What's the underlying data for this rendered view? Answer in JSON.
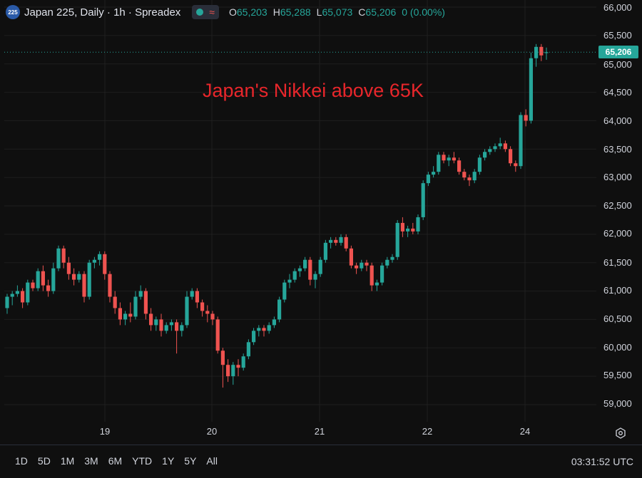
{
  "header": {
    "badge": "225",
    "title": "Japan 225, Daily · 1h · Spreadex",
    "ohlc": [
      {
        "key": "O",
        "value": "65,203"
      },
      {
        "key": "H",
        "value": "65,288"
      },
      {
        "key": "L",
        "value": "65,073"
      },
      {
        "key": "C",
        "value": "65,206"
      },
      {
        "key": "",
        "value": "0 (0.00%)"
      }
    ]
  },
  "annotation": "Japan's Nikkei above 65K",
  "price_tag": "65,206",
  "colors": {
    "up": "#26a69a",
    "down": "#ef5350",
    "annotation": "#e8262b",
    "background": "#0f0f0f"
  },
  "ranges": [
    "1D",
    "5D",
    "1M",
    "3M",
    "6M",
    "YTD",
    "1Y",
    "5Y",
    "All"
  ],
  "clock": "03:31:52 UTC",
  "icons": {
    "settings": "gear-icon",
    "status": "status-dot-icon",
    "indicator": "wave-icon"
  },
  "chart_data": {
    "type": "candlestick",
    "grid": true,
    "ylim": [
      58750,
      66000
    ],
    "yticks": [
      "66,000",
      "65,500",
      "65,000",
      "64,500",
      "64,000",
      "63,500",
      "63,000",
      "62,500",
      "62,000",
      "61,500",
      "61,000",
      "60,500",
      "60,000",
      "59,500",
      "59,000"
    ],
    "ytick_values": [
      66000,
      65500,
      65000,
      64500,
      64000,
      63500,
      63000,
      62500,
      62000,
      61500,
      61000,
      60500,
      60000,
      59500,
      59000
    ],
    "xticks": [
      "19",
      "20",
      "21",
      "22",
      "24"
    ],
    "last_price": 65206,
    "candles": [
      [
        60700,
        60950,
        60600,
        60900
      ],
      [
        60900,
        61000,
        60750,
        60950
      ],
      [
        60950,
        61100,
        60900,
        61000
      ],
      [
        61000,
        61050,
        60700,
        60800
      ],
      [
        60800,
        61200,
        60750,
        61150
      ],
      [
        61150,
        61200,
        61000,
        61050
      ],
      [
        61050,
        61400,
        61000,
        61350
      ],
      [
        61350,
        61450,
        61000,
        61100
      ],
      [
        61100,
        61200,
        60900,
        61000
      ],
      [
        61000,
        61500,
        60950,
        61400
      ],
      [
        61400,
        61800,
        61350,
        61750
      ],
      [
        61750,
        61800,
        61400,
        61500
      ],
      [
        61500,
        61600,
        61200,
        61300
      ],
      [
        61300,
        61400,
        61100,
        61200
      ],
      [
        61200,
        61350,
        61150,
        61300
      ],
      [
        61300,
        61350,
        60800,
        60900
      ],
      [
        60900,
        61550,
        60850,
        61500
      ],
      [
        61500,
        61600,
        61400,
        61550
      ],
      [
        61550,
        61700,
        61450,
        61650
      ],
      [
        61650,
        61700,
        61200,
        61300
      ],
      [
        61300,
        61350,
        60800,
        60900
      ],
      [
        60900,
        61000,
        60600,
        60700
      ],
      [
        60700,
        60800,
        60400,
        60500
      ],
      [
        60500,
        60650,
        60400,
        60600
      ],
      [
        60600,
        60800,
        60450,
        60550
      ],
      [
        60550,
        61000,
        60500,
        60900
      ],
      [
        60900,
        61100,
        60850,
        61000
      ],
      [
        61000,
        61050,
        60500,
        60600
      ],
      [
        60600,
        60700,
        60300,
        60400
      ],
      [
        60400,
        60550,
        60300,
        60500
      ],
      [
        60500,
        60600,
        60200,
        60300
      ],
      [
        60300,
        60450,
        60250,
        60400
      ],
      [
        60400,
        60500,
        60300,
        60450
      ],
      [
        60450,
        60500,
        59900,
        60300
      ],
      [
        60300,
        60450,
        60200,
        60400
      ],
      [
        60400,
        61000,
        60350,
        60900
      ],
      [
        60900,
        61050,
        60850,
        61000
      ],
      [
        61000,
        61050,
        60700,
        60800
      ],
      [
        60800,
        60850,
        60550,
        60650
      ],
      [
        60650,
        60750,
        60450,
        60600
      ],
      [
        60600,
        60650,
        60400,
        60500
      ],
      [
        60500,
        60550,
        59900,
        59950
      ],
      [
        59950,
        60000,
        59300,
        59700
      ],
      [
        59700,
        59800,
        59400,
        59500
      ],
      [
        59500,
        59750,
        59350,
        59700
      ],
      [
        59700,
        59800,
        59500,
        59650
      ],
      [
        59650,
        59900,
        59600,
        59850
      ],
      [
        59850,
        60150,
        59800,
        60100
      ],
      [
        60100,
        60350,
        60050,
        60300
      ],
      [
        60300,
        60400,
        60200,
        60350
      ],
      [
        60350,
        60400,
        60200,
        60300
      ],
      [
        60300,
        60450,
        60250,
        60400
      ],
      [
        60400,
        60550,
        60350,
        60500
      ],
      [
        60500,
        60900,
        60450,
        60850
      ],
      [
        60850,
        61200,
        60800,
        61150
      ],
      [
        61150,
        61300,
        61050,
        61200
      ],
      [
        61200,
        61400,
        61150,
        61350
      ],
      [
        61350,
        61450,
        61250,
        61400
      ],
      [
        61400,
        61600,
        61350,
        61550
      ],
      [
        61550,
        61600,
        61100,
        61200
      ],
      [
        61200,
        61350,
        61050,
        61300
      ],
      [
        61300,
        61600,
        61250,
        61550
      ],
      [
        61550,
        61900,
        61500,
        61850
      ],
      [
        61850,
        61950,
        61750,
        61900
      ],
      [
        61900,
        61950,
        61800,
        61850
      ],
      [
        61850,
        62000,
        61800,
        61950
      ],
      [
        61950,
        62000,
        61700,
        61750
      ],
      [
        61750,
        61800,
        61400,
        61450
      ],
      [
        61450,
        61500,
        61300,
        61400
      ],
      [
        61400,
        61550,
        61350,
        61500
      ],
      [
        61500,
        61550,
        61350,
        61450
      ],
      [
        61450,
        61500,
        61000,
        61100
      ],
      [
        61100,
        61200,
        61000,
        61150
      ],
      [
        61150,
        61500,
        61100,
        61450
      ],
      [
        61450,
        61600,
        61400,
        61550
      ],
      [
        61550,
        61650,
        61500,
        61600
      ],
      [
        61600,
        62250,
        61550,
        62200
      ],
      [
        62200,
        62300,
        61950,
        62050
      ],
      [
        62050,
        62150,
        61950,
        62100
      ],
      [
        62100,
        62200,
        62000,
        62050
      ],
      [
        62050,
        62350,
        62000,
        62300
      ],
      [
        62300,
        62950,
        62250,
        62900
      ],
      [
        62900,
        63100,
        62850,
        63050
      ],
      [
        63050,
        63200,
        63000,
        63100
      ],
      [
        63100,
        63450,
        63050,
        63400
      ],
      [
        63400,
        63450,
        63250,
        63300
      ],
      [
        63300,
        63400,
        63200,
        63350
      ],
      [
        63350,
        63450,
        63250,
        63300
      ],
      [
        63300,
        63350,
        63050,
        63100
      ],
      [
        63100,
        63150,
        62950,
        63000
      ],
      [
        63000,
        63050,
        62850,
        62950
      ],
      [
        62950,
        63150,
        62900,
        63100
      ],
      [
        63100,
        63400,
        63050,
        63350
      ],
      [
        63350,
        63500,
        63300,
        63450
      ],
      [
        63450,
        63550,
        63400,
        63500
      ],
      [
        63500,
        63600,
        63450,
        63550
      ],
      [
        63550,
        63700,
        63500,
        63600
      ],
      [
        63600,
        63650,
        63450,
        63500
      ],
      [
        63500,
        63550,
        63200,
        63250
      ],
      [
        63250,
        63300,
        63100,
        63200
      ],
      [
        63200,
        64150,
        63150,
        64100
      ],
      [
        64100,
        64200,
        63900,
        64000
      ],
      [
        64000,
        65200,
        63950,
        65100
      ],
      [
        65100,
        65350,
        64950,
        65300
      ],
      [
        65300,
        65350,
        65050,
        65150
      ],
      [
        65203,
        65288,
        65073,
        65206
      ]
    ]
  }
}
